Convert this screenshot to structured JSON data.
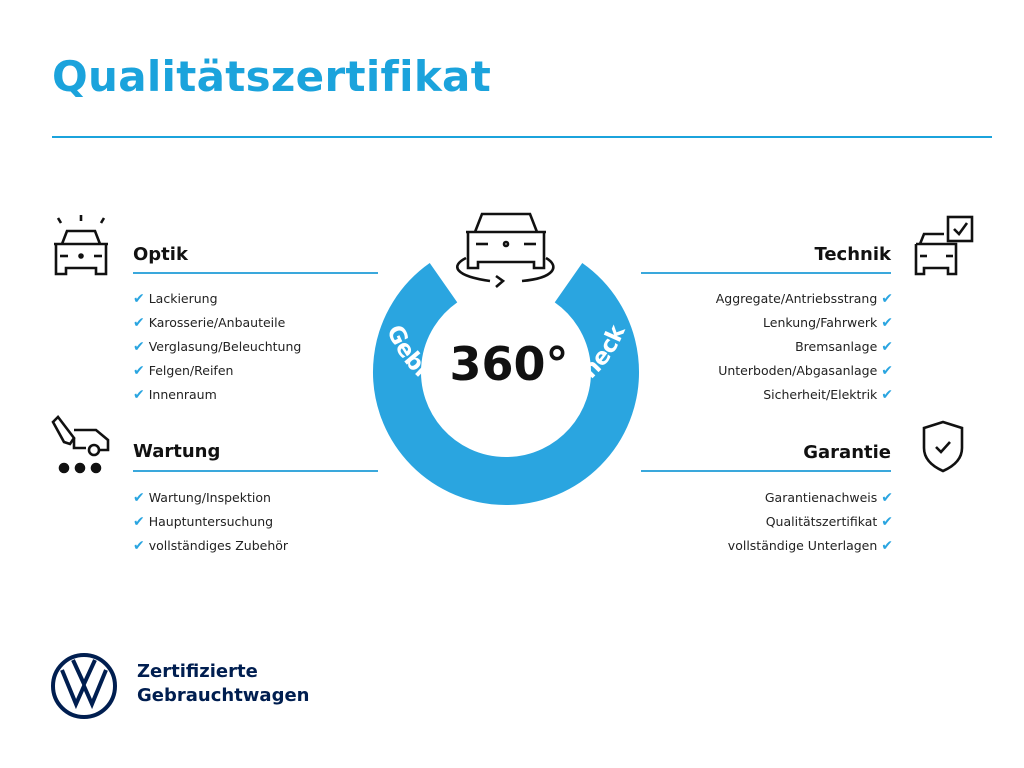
{
  "title": "Qualitätszertifikat",
  "badge": {
    "number": "360°",
    "ring_text": "Gebrauchtwagen-Check"
  },
  "sections": {
    "optik": {
      "heading": "Optik",
      "icon": "car-lights-icon",
      "items": [
        "Lackierung",
        "Karosserie/Anbauteile",
        "Verglasung/Beleuchtung",
        "Felgen/Reifen",
        "Innenraum"
      ]
    },
    "wartung": {
      "heading": "Wartung",
      "icon": "car-service-icon",
      "items": [
        "Wartung/Inspektion",
        "Hauptuntersuchung",
        "vollständiges Zubehör"
      ]
    },
    "technik": {
      "heading": "Technik",
      "icon": "car-checklist-icon",
      "items": [
        "Aggregate/Antriebsstrang",
        "Lenkung/Fahrwerk",
        "Bremsanlage",
        "Unterboden/Abgasanlage",
        "Sicherheit/Elektrik"
      ]
    },
    "garantie": {
      "heading": "Garantie",
      "icon": "shield-check-icon",
      "items": [
        "Garantienachweis",
        "Qualitätszertifikat",
        "vollständige Unterlagen"
      ]
    }
  },
  "check_mark": "✔",
  "footer": {
    "line1": "Zertifizierte",
    "line2": "Gebrauchtwagen",
    "logo_letters": "VW"
  },
  "colors": {
    "accent": "#1ba3dc",
    "brand_navy": "#001e50",
    "ring": "#2aa5e0"
  }
}
